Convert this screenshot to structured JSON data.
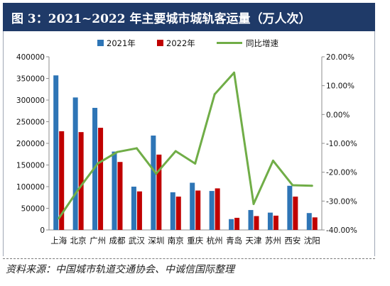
{
  "title": "图 3：2021~2022 年主要城市城轨客运量（万人次）",
  "source": "资料来源：中国城市轨道交通协会、中诚信国际整理",
  "chart_data": {
    "type": "bar",
    "categories": [
      "上海",
      "北京",
      "广州",
      "成都",
      "武汉",
      "深圳",
      "南京",
      "重庆",
      "杭州",
      "青岛",
      "天津",
      "苏州",
      "西安",
      "沈阳"
    ],
    "series": [
      {
        "name": "2021年",
        "type": "bar",
        "axis": "left",
        "color": "#2e75b6",
        "values": [
          357000,
          306000,
          282000,
          181000,
          100000,
          218000,
          87000,
          109000,
          90000,
          25000,
          46000,
          40000,
          102000,
          39000
        ]
      },
      {
        "name": "2022年",
        "type": "bar",
        "axis": "left",
        "color": "#c00000",
        "values": [
          228000,
          226000,
          236000,
          157000,
          89000,
          174000,
          77000,
          91000,
          96000,
          28000,
          32000,
          33000,
          77000,
          29000
        ]
      },
      {
        "name": "同比增速",
        "type": "line",
        "axis": "right",
        "color": "#70ad47",
        "values": [
          -36,
          -26,
          -17,
          -13,
          -11.7,
          -20.5,
          -12.7,
          -17,
          7,
          14.5,
          -31,
          -16,
          -24.5,
          -24.7
        ]
      }
    ],
    "y_left": {
      "min": 0,
      "max": 400000,
      "step": 50000,
      "tick_labels": [
        "0",
        "50000",
        "100000",
        "150000",
        "200000",
        "250000",
        "300000",
        "350000",
        "400000"
      ]
    },
    "y_right": {
      "min": -40,
      "max": 20,
      "step": 10,
      "tick_labels": [
        "-40.00%",
        "-30.00%",
        "-20.00%",
        "-10.00%",
        "0.00%",
        "10.00%",
        "20.00%"
      ]
    },
    "legend": {
      "placement": "top-center"
    },
    "grid": false
  }
}
